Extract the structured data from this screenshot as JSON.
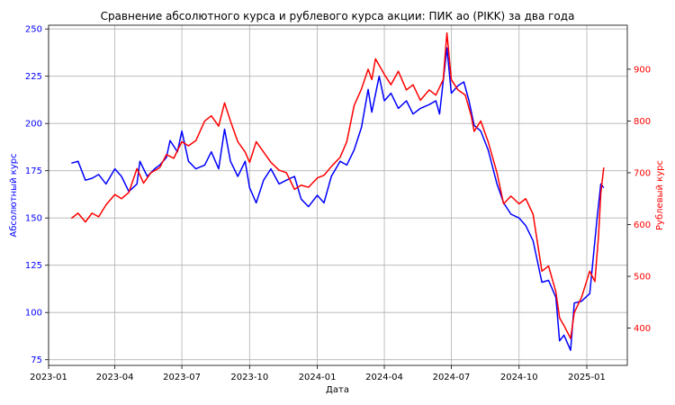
{
  "chart_data": {
    "type": "line",
    "title": "Сравнение абсолютного курса и рублевого курса акции: ПИК ао (PIKK) за два года",
    "xlabel": "Дата",
    "ylabel_left": "Абсолютный курс",
    "ylabel_right": "Рублевый курс",
    "grid": true,
    "x_range": [
      "2023-01-01",
      "2025-02-25"
    ],
    "x_ticks": [
      {
        "date": "2023-01-01",
        "label": "2023-01"
      },
      {
        "date": "2023-04-01",
        "label": "2023-04"
      },
      {
        "date": "2023-07-01",
        "label": "2023-07"
      },
      {
        "date": "2023-10-01",
        "label": "2023-10"
      },
      {
        "date": "2024-01-01",
        "label": "2024-01"
      },
      {
        "date": "2024-04-01",
        "label": "2024-04"
      },
      {
        "date": "2024-07-01",
        "label": "2024-07"
      },
      {
        "date": "2024-10-01",
        "label": "2024-10"
      },
      {
        "date": "2025-01-01",
        "label": "2025-01"
      }
    ],
    "y_left": {
      "range": [
        72,
        252
      ],
      "ticks": [
        75,
        100,
        125,
        150,
        175,
        200,
        225,
        250
      ],
      "color": "#0000ff"
    },
    "y_right": {
      "range": [
        328,
        985
      ],
      "ticks": [
        400,
        500,
        600,
        700,
        800,
        900
      ],
      "color": "#ff0000"
    },
    "series": [
      {
        "axis": "left",
        "color": "#0000ff",
        "points": [
          [
            "2023-02-01",
            179
          ],
          [
            "2023-02-10",
            180
          ],
          [
            "2023-02-20",
            170
          ],
          [
            "2023-03-01",
            171
          ],
          [
            "2023-03-10",
            173
          ],
          [
            "2023-03-20",
            168
          ],
          [
            "2023-04-01",
            176
          ],
          [
            "2023-04-10",
            172
          ],
          [
            "2023-04-20",
            164
          ],
          [
            "2023-05-01",
            168
          ],
          [
            "2023-05-05",
            180
          ],
          [
            "2023-05-15",
            172
          ],
          [
            "2023-05-25",
            176
          ],
          [
            "2023-06-01",
            178
          ],
          [
            "2023-06-10",
            182
          ],
          [
            "2023-06-15",
            191
          ],
          [
            "2023-06-25",
            185
          ],
          [
            "2023-07-01",
            196
          ],
          [
            "2023-07-10",
            180
          ],
          [
            "2023-07-20",
            176
          ],
          [
            "2023-08-01",
            178
          ],
          [
            "2023-08-10",
            185
          ],
          [
            "2023-08-20",
            176
          ],
          [
            "2023-08-28",
            197
          ],
          [
            "2023-09-05",
            180
          ],
          [
            "2023-09-15",
            172
          ],
          [
            "2023-09-25",
            180
          ],
          [
            "2023-10-01",
            166
          ],
          [
            "2023-10-10",
            158
          ],
          [
            "2023-10-20",
            170
          ],
          [
            "2023-10-30",
            176
          ],
          [
            "2023-11-10",
            168
          ],
          [
            "2023-11-20",
            170
          ],
          [
            "2023-12-01",
            172
          ],
          [
            "2023-12-10",
            160
          ],
          [
            "2023-12-20",
            156
          ],
          [
            "2024-01-01",
            162
          ],
          [
            "2024-01-10",
            158
          ],
          [
            "2024-01-20",
            172
          ],
          [
            "2024-02-01",
            180
          ],
          [
            "2024-02-10",
            178
          ],
          [
            "2024-02-20",
            186
          ],
          [
            "2024-03-01",
            198
          ],
          [
            "2024-03-10",
            218
          ],
          [
            "2024-03-15",
            206
          ],
          [
            "2024-03-25",
            225
          ],
          [
            "2024-04-01",
            212
          ],
          [
            "2024-04-10",
            216
          ],
          [
            "2024-04-20",
            208
          ],
          [
            "2024-05-01",
            212
          ],
          [
            "2024-05-10",
            205
          ],
          [
            "2024-05-20",
            208
          ],
          [
            "2024-06-01",
            210
          ],
          [
            "2024-06-10",
            212
          ],
          [
            "2024-06-15",
            205
          ],
          [
            "2024-06-25",
            240
          ],
          [
            "2024-07-01",
            216
          ],
          [
            "2024-07-10",
            220
          ],
          [
            "2024-07-18",
            222
          ],
          [
            "2024-07-25",
            212
          ],
          [
            "2024-08-01",
            199
          ],
          [
            "2024-08-10",
            196
          ],
          [
            "2024-08-20",
            186
          ],
          [
            "2024-09-01",
            168
          ],
          [
            "2024-09-10",
            158
          ],
          [
            "2024-09-20",
            152
          ],
          [
            "2024-10-01",
            150
          ],
          [
            "2024-10-10",
            146
          ],
          [
            "2024-10-20",
            138
          ],
          [
            "2024-11-01",
            116
          ],
          [
            "2024-11-10",
            117
          ],
          [
            "2024-11-20",
            108
          ],
          [
            "2024-11-25",
            85
          ],
          [
            "2024-12-01",
            88
          ],
          [
            "2024-12-10",
            80
          ],
          [
            "2024-12-15",
            105
          ],
          [
            "2024-12-25",
            106
          ],
          [
            "2025-01-05",
            110
          ],
          [
            "2025-01-15",
            150
          ],
          [
            "2025-01-20",
            168
          ],
          [
            "2025-01-24",
            166
          ]
        ]
      },
      {
        "axis": "right",
        "color": "#ff0000",
        "points": [
          [
            "2023-02-01",
            612
          ],
          [
            "2023-02-10",
            622
          ],
          [
            "2023-02-20",
            605
          ],
          [
            "2023-03-01",
            622
          ],
          [
            "2023-03-10",
            615
          ],
          [
            "2023-03-20",
            638
          ],
          [
            "2023-04-01",
            658
          ],
          [
            "2023-04-10",
            650
          ],
          [
            "2023-04-20",
            662
          ],
          [
            "2023-05-01",
            708
          ],
          [
            "2023-05-10",
            680
          ],
          [
            "2023-05-20",
            700
          ],
          [
            "2023-06-01",
            710
          ],
          [
            "2023-06-10",
            735
          ],
          [
            "2023-06-20",
            728
          ],
          [
            "2023-07-01",
            760
          ],
          [
            "2023-07-10",
            752
          ],
          [
            "2023-07-20",
            762
          ],
          [
            "2023-08-01",
            800
          ],
          [
            "2023-08-10",
            810
          ],
          [
            "2023-08-20",
            790
          ],
          [
            "2023-08-28",
            835
          ],
          [
            "2023-09-05",
            800
          ],
          [
            "2023-09-15",
            760
          ],
          [
            "2023-09-25",
            740
          ],
          [
            "2023-10-01",
            720
          ],
          [
            "2023-10-10",
            760
          ],
          [
            "2023-10-20",
            740
          ],
          [
            "2023-10-30",
            720
          ],
          [
            "2023-11-10",
            705
          ],
          [
            "2023-11-20",
            700
          ],
          [
            "2023-12-01",
            668
          ],
          [
            "2023-12-10",
            676
          ],
          [
            "2023-12-20",
            672
          ],
          [
            "2024-01-01",
            690
          ],
          [
            "2024-01-10",
            695
          ],
          [
            "2024-01-20",
            712
          ],
          [
            "2024-02-01",
            730
          ],
          [
            "2024-02-10",
            760
          ],
          [
            "2024-02-20",
            830
          ],
          [
            "2024-03-01",
            862
          ],
          [
            "2024-03-10",
            900
          ],
          [
            "2024-03-15",
            880
          ],
          [
            "2024-03-20",
            920
          ],
          [
            "2024-04-01",
            890
          ],
          [
            "2024-04-10",
            870
          ],
          [
            "2024-04-20",
            896
          ],
          [
            "2024-05-01",
            860
          ],
          [
            "2024-05-10",
            870
          ],
          [
            "2024-05-20",
            840
          ],
          [
            "2024-06-01",
            860
          ],
          [
            "2024-06-10",
            850
          ],
          [
            "2024-06-20",
            880
          ],
          [
            "2024-06-25",
            970
          ],
          [
            "2024-07-01",
            880
          ],
          [
            "2024-07-10",
            860
          ],
          [
            "2024-07-20",
            850
          ],
          [
            "2024-07-28",
            810
          ],
          [
            "2024-08-01",
            780
          ],
          [
            "2024-08-10",
            800
          ],
          [
            "2024-08-20",
            760
          ],
          [
            "2024-09-01",
            700
          ],
          [
            "2024-09-10",
            640
          ],
          [
            "2024-09-20",
            655
          ],
          [
            "2024-10-01",
            640
          ],
          [
            "2024-10-10",
            650
          ],
          [
            "2024-10-20",
            620
          ],
          [
            "2024-11-01",
            510
          ],
          [
            "2024-11-10",
            520
          ],
          [
            "2024-11-20",
            470
          ],
          [
            "2024-11-25",
            420
          ],
          [
            "2024-12-01",
            405
          ],
          [
            "2024-12-10",
            380
          ],
          [
            "2024-12-15",
            430
          ],
          [
            "2024-12-25",
            460
          ],
          [
            "2025-01-05",
            510
          ],
          [
            "2025-01-12",
            490
          ],
          [
            "2025-01-17",
            580
          ],
          [
            "2025-01-20",
            660
          ],
          [
            "2025-01-24",
            710
          ]
        ]
      }
    ]
  }
}
